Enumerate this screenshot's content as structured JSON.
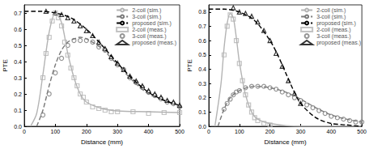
{
  "chart_data": [
    {
      "type": "line",
      "xlabel": "Distance (mm)",
      "ylabel": "PTE",
      "xlim": [
        0,
        500
      ],
      "xticks": [
        0,
        100,
        200,
        300,
        400,
        500
      ],
      "ylim": [
        0,
        0.75
      ],
      "yticks": [
        {
          "value": 0,
          "label": "0.0"
        },
        0.1,
        0.2,
        0.3,
        0.4,
        0.5,
        0.6,
        0.7
      ],
      "grid": false,
      "legend": "upper right",
      "series": [
        {
          "name": "2-coil (sim.)",
          "type": "line",
          "line_style": "solid",
          "color": "#b4b4b4",
          "x": [
            20,
            40,
            60,
            80,
            100,
            120,
            140,
            160,
            180,
            200,
            250,
            300,
            400,
            500
          ],
          "values": [
            0.0,
            0.08,
            0.32,
            0.58,
            0.7,
            0.64,
            0.45,
            0.3,
            0.2,
            0.15,
            0.11,
            0.095,
            0.09,
            0.085
          ]
        },
        {
          "name": "3-coil (sim.)",
          "type": "line",
          "line_style": "dashed",
          "color": "#7a7a7a",
          "x": [
            40,
            60,
            80,
            100,
            120,
            140,
            160,
            180,
            200,
            250,
            300,
            350,
            400,
            450,
            500
          ],
          "values": [
            0.0,
            0.1,
            0.25,
            0.38,
            0.47,
            0.52,
            0.54,
            0.55,
            0.54,
            0.48,
            0.38,
            0.28,
            0.2,
            0.16,
            0.12
          ]
        },
        {
          "name": "proposed (sim.)",
          "type": "line",
          "line_style": "dashed",
          "color": "#000000",
          "x": [
            0,
            50,
            100,
            150,
            200,
            250,
            300,
            350,
            400,
            450,
            500
          ],
          "values": [
            0.71,
            0.71,
            0.7,
            0.67,
            0.6,
            0.5,
            0.39,
            0.29,
            0.21,
            0.16,
            0.13
          ]
        },
        {
          "name": "2-coil (meas.)",
          "type": "scatter",
          "marker": "square",
          "color": "#b4b4b4",
          "x": [
            60,
            70,
            80,
            90,
            100,
            110,
            120,
            130,
            140,
            150,
            160,
            170,
            180,
            190,
            200,
            220,
            240,
            260,
            280,
            300,
            350,
            400,
            450,
            500
          ],
          "values": [
            0.3,
            0.45,
            0.55,
            0.65,
            0.7,
            0.67,
            0.62,
            0.52,
            0.44,
            0.36,
            0.3,
            0.25,
            0.2,
            0.18,
            0.15,
            0.12,
            0.11,
            0.1,
            0.09,
            0.09,
            0.09,
            0.08,
            0.085,
            0.085
          ]
        },
        {
          "name": "3-coil (meas.)",
          "type": "scatter",
          "marker": "circle",
          "color": "#7a7a7a",
          "x": [
            60,
            80,
            100,
            120,
            140,
            160,
            180,
            200,
            220,
            240,
            260,
            280,
            300,
            320,
            340,
            360,
            380,
            400,
            420,
            440,
            460,
            480,
            500
          ],
          "values": [
            0.07,
            0.2,
            0.33,
            0.42,
            0.5,
            0.53,
            0.53,
            0.53,
            0.52,
            0.49,
            0.47,
            0.42,
            0.38,
            0.35,
            0.3,
            0.27,
            0.24,
            0.21,
            0.19,
            0.17,
            0.15,
            0.14,
            0.12
          ]
        },
        {
          "name": "proposed (meas.)",
          "type": "scatter",
          "marker": "triangle",
          "color": "#000000",
          "x": [
            70,
            100,
            120,
            140,
            160,
            180,
            200,
            220,
            240,
            260,
            280,
            300,
            320,
            340,
            360,
            380,
            400,
            420,
            440,
            460,
            480,
            500
          ],
          "values": [
            0.71,
            0.7,
            0.69,
            0.67,
            0.65,
            0.62,
            0.59,
            0.56,
            0.52,
            0.48,
            0.43,
            0.39,
            0.35,
            0.31,
            0.28,
            0.25,
            0.22,
            0.2,
            0.18,
            0.16,
            0.15,
            0.13
          ]
        }
      ]
    },
    {
      "type": "line",
      "xlabel": "Distance (mm)",
      "ylabel": "PTE",
      "xlim": [
        0,
        500
      ],
      "xticks": [
        0,
        100,
        200,
        300,
        400,
        500
      ],
      "ylim": [
        0,
        0.85
      ],
      "yticks": [
        {
          "value": 0,
          "label": "0.0"
        },
        0.1,
        0.2,
        0.3,
        0.4,
        0.5,
        0.6,
        0.7,
        0.8
      ],
      "grid": false,
      "legend": "upper right",
      "series": [
        {
          "name": "2-coil (sim.)",
          "type": "line",
          "line_style": "solid",
          "color": "#b4b4b4",
          "x": [
            20,
            40,
            50,
            60,
            70,
            80,
            90,
            100,
            120,
            140,
            160,
            200,
            300,
            500
          ],
          "values": [
            0.0,
            0.3,
            0.55,
            0.72,
            0.79,
            0.76,
            0.62,
            0.45,
            0.22,
            0.1,
            0.05,
            0.02,
            0.0,
            0.0
          ]
        },
        {
          "name": "3-coil (sim.)",
          "type": "line",
          "line_style": "dashed",
          "color": "#7a7a7a",
          "x": [
            30,
            50,
            70,
            100,
            150,
            200,
            250,
            300,
            350,
            400,
            450,
            500
          ],
          "values": [
            0.0,
            0.12,
            0.2,
            0.25,
            0.28,
            0.27,
            0.24,
            0.19,
            0.13,
            0.08,
            0.05,
            0.03
          ]
        },
        {
          "name": "proposed (sim.)",
          "type": "line",
          "line_style": "dashed",
          "color": "#000000",
          "x": [
            0,
            50,
            100,
            150,
            200,
            225,
            250,
            275,
            300,
            350,
            400,
            450,
            500
          ],
          "values": [
            0.82,
            0.82,
            0.8,
            0.74,
            0.6,
            0.5,
            0.38,
            0.26,
            0.16,
            0.06,
            0.02,
            0.01,
            0.0
          ]
        },
        {
          "name": "2-coil (meas.)",
          "type": "scatter",
          "marker": "square",
          "color": "#b4b4b4",
          "x": [
            50,
            60,
            70,
            80,
            90,
            100,
            110,
            120,
            130,
            140,
            150,
            160,
            180,
            200
          ],
          "values": [
            0.5,
            0.7,
            0.78,
            0.75,
            0.6,
            0.44,
            0.32,
            0.22,
            0.15,
            0.1,
            0.06,
            0.04,
            0.02,
            0.01
          ]
        },
        {
          "name": "3-coil (meas.)",
          "type": "scatter",
          "marker": "circle",
          "color": "#7a7a7a",
          "x": [
            50,
            60,
            70,
            80,
            90,
            100,
            120,
            140,
            160,
            180,
            200,
            220,
            240,
            260,
            280,
            300,
            320,
            340,
            360,
            380,
            400,
            420,
            440,
            460,
            480,
            500
          ],
          "values": [
            0.12,
            0.16,
            0.19,
            0.22,
            0.24,
            0.25,
            0.27,
            0.28,
            0.28,
            0.28,
            0.27,
            0.26,
            0.24,
            0.22,
            0.2,
            0.18,
            0.15,
            0.13,
            0.11,
            0.09,
            0.07,
            0.06,
            0.05,
            0.04,
            0.03,
            0.03
          ]
        },
        {
          "name": "proposed (meas.)",
          "type": "scatter",
          "marker": "triangle",
          "color": "#000000",
          "x": [
            80,
            100,
            120,
            140,
            160,
            180,
            200,
            220,
            240,
            260,
            280,
            300
          ],
          "values": [
            0.83,
            0.8,
            0.79,
            0.77,
            0.73,
            0.67,
            0.6,
            0.51,
            0.42,
            0.32,
            0.23,
            0.16
          ]
        }
      ]
    }
  ]
}
